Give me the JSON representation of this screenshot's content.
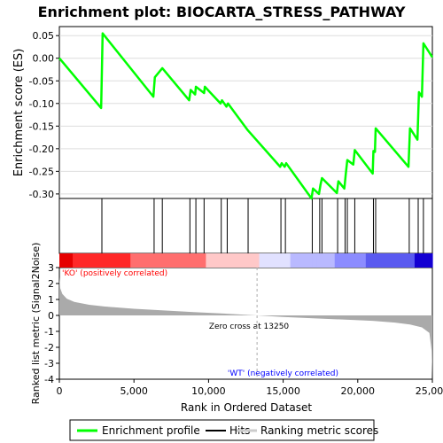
{
  "chart_data": {
    "type": "line",
    "title": "Enrichment plot: BIOCARTA_STRESS_PATHWAY",
    "es_panel": {
      "ylabel": "Enrichment score (ES)",
      "ylim": [
        -0.31,
        0.07
      ],
      "yticks": [
        0.05,
        0.0,
        -0.05,
        -0.1,
        -0.15,
        -0.2,
        -0.25,
        -0.3
      ],
      "ytick_labels": [
        "0.05",
        "0.00",
        "-0.05",
        "-0.10",
        "-0.15",
        "-0.20",
        "-0.25",
        "-0.30"
      ],
      "series": [
        {
          "name": "Enrichment profile",
          "color": "#00ff00",
          "x": [
            0,
            2800,
            2850,
            2900,
            6300,
            6400,
            6900,
            8700,
            8800,
            9100,
            9150,
            9700,
            9750,
            10800,
            10900,
            11200,
            11300,
            12600,
            14800,
            14900,
            15100,
            15200,
            16900,
            17000,
            17400,
            17500,
            17600,
            18600,
            18700,
            19100,
            19200,
            19300,
            19700,
            19800,
            21000,
            21050,
            21150,
            21200,
            23400,
            23500,
            24000,
            24100,
            24300,
            24400,
            25000
          ],
          "y": [
            0.0,
            -0.11,
            -0.03,
            0.055,
            -0.085,
            -0.042,
            -0.022,
            -0.093,
            -0.07,
            -0.08,
            -0.063,
            -0.077,
            -0.063,
            -0.1,
            -0.093,
            -0.107,
            -0.1,
            -0.158,
            -0.24,
            -0.232,
            -0.24,
            -0.232,
            -0.31,
            -0.288,
            -0.3,
            -0.28,
            -0.265,
            -0.298,
            -0.272,
            -0.288,
            -0.255,
            -0.225,
            -0.235,
            -0.203,
            -0.255,
            -0.205,
            -0.207,
            -0.155,
            -0.24,
            -0.155,
            -0.18,
            -0.075,
            -0.085,
            0.033,
            0.002
          ]
        }
      ]
    },
    "hits": {
      "name": "Hits",
      "positions": [
        2850,
        6350,
        6900,
        8750,
        9150,
        9700,
        10850,
        11250,
        12650,
        14850,
        15150,
        16950,
        17450,
        17600,
        18650,
        19150,
        19300,
        19800,
        21050,
        21200,
        23450,
        24050,
        24400
      ]
    },
    "ranked_panel": {
      "ylabel": "Ranked list metric (Signal2Noise)",
      "xlabel": "Rank in Ordered Dataset",
      "xlim": [
        0,
        25000
      ],
      "ylim": [
        -4,
        3
      ],
      "xticks": [
        0,
        5000,
        10000,
        15000,
        20000,
        25000
      ],
      "xtick_labels": [
        "0",
        "5,000",
        "10,000",
        "15,000",
        "20,000",
        "25,000"
      ],
      "yticks": [
        3,
        2,
        1,
        0,
        -1,
        -2,
        -3,
        -4
      ],
      "ytick_labels": [
        "3",
        "2",
        "1",
        "0",
        "-1",
        "-2",
        "-3",
        "-4"
      ],
      "series": [
        {
          "name": "Ranking metric scores",
          "color": "#aaaaaa",
          "x": [
            0,
            60,
            200,
            500,
            1000,
            2000,
            3000,
            5000,
            7000,
            9000,
            11000,
            13250,
            15000,
            17000,
            19000,
            21000,
            22500,
            23500,
            24300,
            24800,
            24950,
            25000
          ],
          "y": [
            2.4,
            1.7,
            1.35,
            1.05,
            0.85,
            0.67,
            0.56,
            0.42,
            0.31,
            0.21,
            0.12,
            0.0,
            -0.1,
            -0.18,
            -0.26,
            -0.34,
            -0.45,
            -0.57,
            -0.75,
            -1.1,
            -2.2,
            -3.9
          ]
        }
      ],
      "zero_cross_label": "Zero cross at 13250",
      "zero_cross_x": 13250,
      "pos_label": "'KO' (positively correlated)",
      "neg_label": "'WT' (negatively correlated)",
      "pos_color": "#ff0000",
      "neg_color": "#0000ff"
    },
    "legend": {
      "placement": "bottom",
      "items": [
        {
          "label": "Enrichment profile",
          "color": "#00ff00"
        },
        {
          "label": "Hits",
          "color": "#000000"
        },
        {
          "label": "Ranking metric scores",
          "color": "#cccccc"
        }
      ]
    }
  }
}
